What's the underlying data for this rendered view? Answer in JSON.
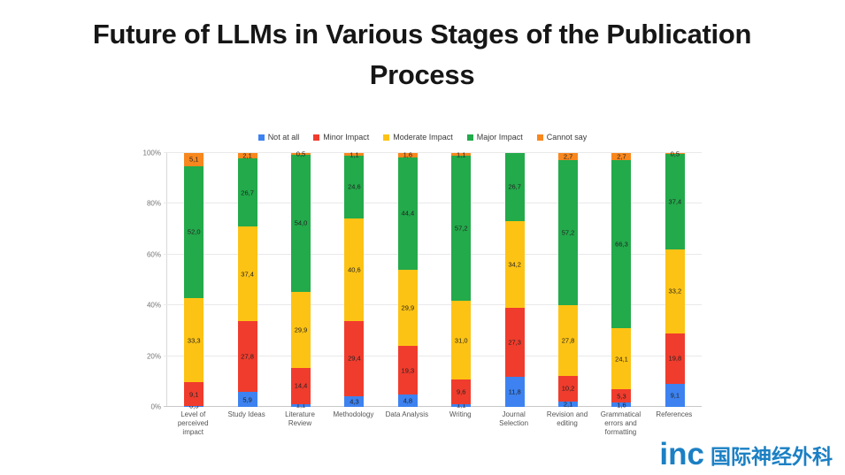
{
  "slide": {
    "title": "Future of LLMs in Various Stages of the Publication Process"
  },
  "legend": {
    "items": [
      {
        "label": "Not at all",
        "color": "#3D82F0"
      },
      {
        "label": "Minor Impact",
        "color": "#F03C2D"
      },
      {
        "label": "Moderate Impact",
        "color": "#FDC314"
      },
      {
        "label": "Major Impact",
        "color": "#23AA4B"
      },
      {
        "label": "Cannot say",
        "color": "#F8871E"
      }
    ]
  },
  "y_axis": {
    "tick_labels": [
      "0%",
      "20%",
      "40%",
      "60%",
      "80%",
      "100%"
    ]
  },
  "chart_data": {
    "type": "bar",
    "stacked": true,
    "title": "Future of LLMs in Various Stages of the Publication Process",
    "categories": [
      "Level of perceived impact",
      "Study Ideas",
      "Literature Review",
      "Methodology",
      "Data Analysis",
      "Writing",
      "Journal Selection",
      "Revision and editing",
      "Grammatical errors and formatting",
      "References"
    ],
    "series": [
      {
        "name": "Not at all",
        "color": "#3D82F0",
        "values": [
          0.5,
          5.9,
          1.1,
          4.3,
          4.8,
          1.1,
          11.8,
          2.1,
          1.6,
          9.1
        ]
      },
      {
        "name": "Minor Impact",
        "color": "#F03C2D",
        "values": [
          9.1,
          27.8,
          14.4,
          29.4,
          19.3,
          9.6,
          27.3,
          10.2,
          5.3,
          19.8
        ]
      },
      {
        "name": "Moderate Impact",
        "color": "#FDC314",
        "values": [
          33.3,
          37.4,
          29.9,
          40.6,
          29.9,
          31.0,
          34.2,
          27.8,
          24.1,
          33.2
        ]
      },
      {
        "name": "Major Impact",
        "color": "#23AA4B",
        "values": [
          52.0,
          26.7,
          54.0,
          24.6,
          44.4,
          57.2,
          26.7,
          57.2,
          66.3,
          37.4
        ]
      },
      {
        "name": "Cannot say",
        "color": "#F8871E",
        "values": [
          5.1,
          2.1,
          0.5,
          1.1,
          1.6,
          1.1,
          0,
          2.7,
          2.7,
          0.5
        ]
      }
    ],
    "ylim": [
      0,
      100
    ],
    "xlabel": "",
    "ylabel": "",
    "grid": true,
    "legend_position": "top",
    "decimal_separator": ","
  },
  "watermark": {
    "logo": "inc",
    "text": "国际神经外科",
    "color": "#1B80C4"
  }
}
